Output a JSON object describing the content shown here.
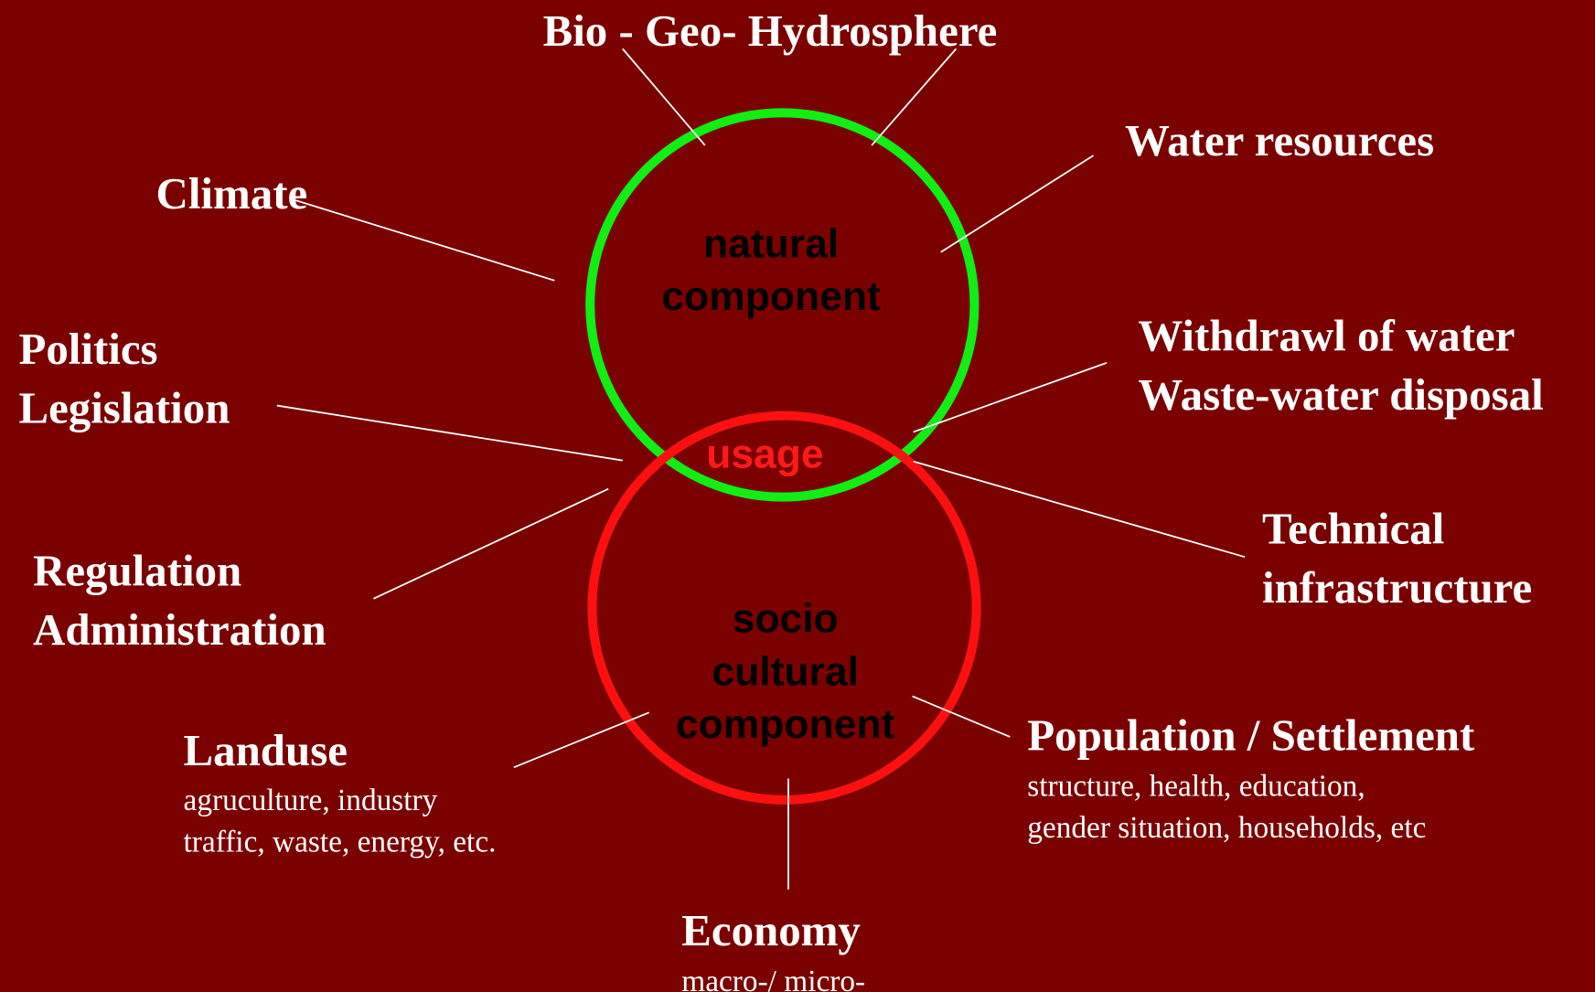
{
  "diagram": {
    "components": {
      "natural": [
        "natural",
        "component"
      ],
      "usage": "usage",
      "socio": [
        "socio",
        "cultural",
        "component"
      ]
    },
    "labels": {
      "bio": [
        "Bio - Geo- Hydrosphere"
      ],
      "water": [
        "Water resources"
      ],
      "climate": [
        "Climate"
      ],
      "politics": [
        "Politics",
        "Legislation"
      ],
      "withdrawl": [
        "Withdrawl of water",
        "Waste-water disposal"
      ],
      "technical": [
        "Technical",
        "infrastructure"
      ],
      "regulation": [
        "Regulation",
        "Administration"
      ],
      "landuse": [
        "Landuse"
      ],
      "population": [
        "Population / Settlement"
      ],
      "economy": [
        "Economy"
      ]
    },
    "details": {
      "landuse": [
        "agruculture, industry",
        "traffic, waste, energy, etc."
      ],
      "population": [
        "structure, health, education,",
        "gender situation, households,  etc"
      ],
      "economy": [
        "macro-/ micro-"
      ]
    }
  }
}
